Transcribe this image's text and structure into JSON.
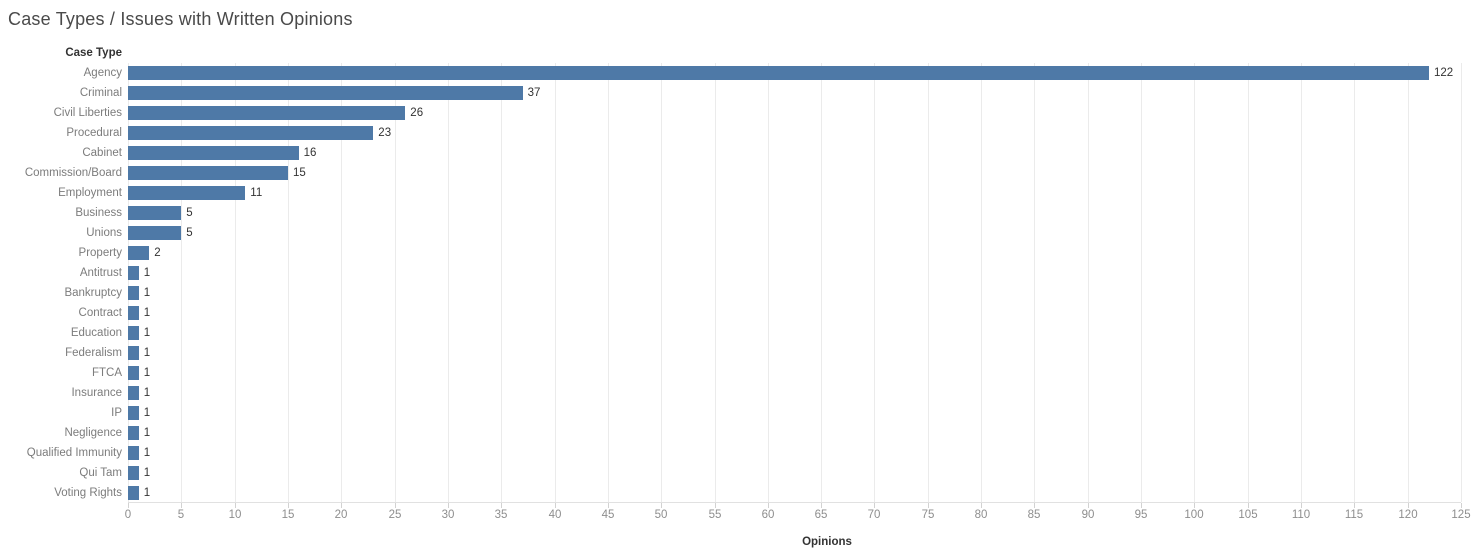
{
  "chart": {
    "title": "Case Types / Issues with Written Opinions",
    "row_header": "Case Type",
    "xlabel": "Opinions"
  },
  "colors": {
    "bar": "#4e79a7",
    "title_text": "#4a4a4a",
    "category_label_text": "#7c7c7c",
    "value_label_text": "#333333",
    "tick_label_text": "#8e8e8e",
    "gridline": "#ebebeb"
  },
  "chart_data": {
    "type": "bar",
    "orientation": "horizontal",
    "title": "Case Types / Issues with Written Opinions",
    "category_axis_label": "Case Type",
    "xlabel": "Opinions",
    "xlim": [
      0,
      125
    ],
    "xticks": [
      0,
      5,
      10,
      15,
      20,
      25,
      30,
      35,
      40,
      45,
      50,
      55,
      60,
      65,
      70,
      75,
      80,
      85,
      90,
      95,
      100,
      105,
      110,
      115,
      120,
      125
    ],
    "grid": true,
    "value_labels": true,
    "bar_color": "#4e79a7",
    "categories": [
      "Agency",
      "Criminal",
      "Civil Liberties",
      "Procedural",
      "Cabinet",
      "Commission/Board",
      "Employment",
      "Business",
      "Unions",
      "Property",
      "Antitrust",
      "Bankruptcy",
      "Contract",
      "Education",
      "Federalism",
      "FTCA",
      "Insurance",
      "IP",
      "Negligence",
      "Qualified Immunity",
      "Qui Tam",
      "Voting Rights"
    ],
    "values": [
      122,
      37,
      26,
      23,
      16,
      15,
      11,
      5,
      5,
      2,
      1,
      1,
      1,
      1,
      1,
      1,
      1,
      1,
      1,
      1,
      1,
      1
    ]
  }
}
